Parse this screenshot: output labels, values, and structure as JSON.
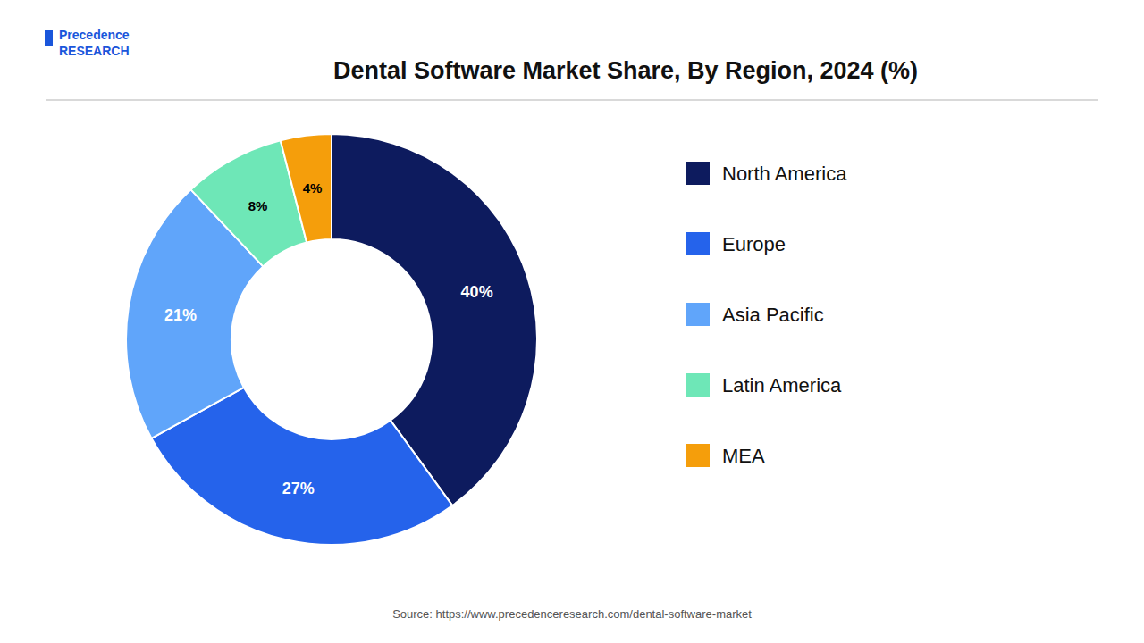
{
  "chart_data": {
    "type": "pie",
    "title": "Dental Software Market Share, By Region, 2024 (%)",
    "categories": [
      "North America",
      "Europe",
      "Asia Pacific",
      "Latin America",
      "MEA"
    ],
    "values": [
      40,
      27,
      21,
      8,
      4
    ],
    "value_labels": [
      "40%",
      "27%",
      "21%",
      "8%",
      "4%"
    ],
    "colors": [
      "#0d1b5e",
      "#2563eb",
      "#60a5fa",
      "#6ee7b7",
      "#f59e0b"
    ],
    "data_labels": true,
    "legend": "right",
    "annotations": [
      "Source: https://www.precedenceresearch.com/dental-software-market",
      "Precedence\nRESEARCH"
    ]
  }
}
